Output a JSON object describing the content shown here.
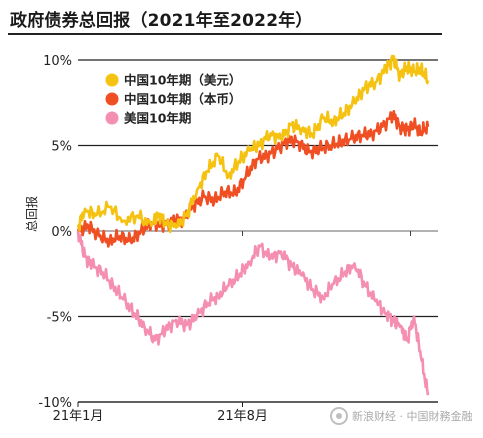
{
  "title": "政府债券总回报（2021年至2022年）",
  "watermark": "新浪财经 · 中国財務金融",
  "chart_data": {
    "type": "line",
    "title": "政府债券总回报（2021年至2022年）",
    "ylabel": "总回报",
    "ylim": [
      -10,
      10
    ],
    "yticks": [
      "10%",
      "5%",
      "0%",
      "-5%",
      "-10%"
    ],
    "ytick_values": [
      10,
      5,
      0,
      -5,
      -10
    ],
    "xticks": [
      "21年1月",
      "21年8月"
    ],
    "grid": "horizontal",
    "legend": "top-left",
    "series": [
      {
        "name": "中国10年期（美元）",
        "color": "#f5c211",
        "x": [
          0,
          0.02,
          0.05,
          0.09,
          0.13,
          0.17,
          0.21,
          0.23,
          0.25,
          0.28,
          0.31,
          0.34,
          0.37,
          0.4,
          0.43,
          0.46,
          0.49,
          0.52,
          0.55,
          0.58,
          0.61,
          0.64,
          0.67,
          0.7,
          0.73,
          0.76,
          0.79,
          0.82,
          0.85,
          0.88,
          0.9,
          0.92,
          0.94,
          0.96,
          0.98,
          1.0
        ],
        "values": [
          0.2,
          1.3,
          0.9,
          1.4,
          0.6,
          0.9,
          0.3,
          1.0,
          0.5,
          0.2,
          0.9,
          2.4,
          3.5,
          4.4,
          3.2,
          4.1,
          4.7,
          5.1,
          5.7,
          5.4,
          6.2,
          6.0,
          5.6,
          6.6,
          6.4,
          6.9,
          7.5,
          8.4,
          8.7,
          9.5,
          10.1,
          9.1,
          9.6,
          9.3,
          9.5,
          8.8
        ]
      },
      {
        "name": "中国10年期（本币）",
        "color": "#f04e23",
        "x": [
          0,
          0.03,
          0.06,
          0.09,
          0.12,
          0.15,
          0.18,
          0.21,
          0.24,
          0.27,
          0.3,
          0.33,
          0.36,
          0.39,
          0.42,
          0.45,
          0.48,
          0.51,
          0.54,
          0.57,
          0.6,
          0.63,
          0.66,
          0.69,
          0.72,
          0.75,
          0.78,
          0.81,
          0.84,
          0.87,
          0.9,
          0.92,
          0.94,
          0.96,
          0.98,
          1.0
        ],
        "values": [
          0.0,
          0.3,
          -0.3,
          -0.6,
          -0.3,
          -0.6,
          0.0,
          0.5,
          0.3,
          0.6,
          0.7,
          1.5,
          2.0,
          1.8,
          2.3,
          2.2,
          3.2,
          4.2,
          4.4,
          4.8,
          5.3,
          5.2,
          4.6,
          4.8,
          5.0,
          5.2,
          5.4,
          5.6,
          5.7,
          6.1,
          6.8,
          6.1,
          5.9,
          6.2,
          5.8,
          6.1
        ]
      },
      {
        "name": "美国10年期",
        "color": "#f48fb1",
        "x": [
          0,
          0.02,
          0.04,
          0.07,
          0.1,
          0.13,
          0.16,
          0.19,
          0.22,
          0.25,
          0.28,
          0.31,
          0.34,
          0.37,
          0.4,
          0.43,
          0.46,
          0.49,
          0.52,
          0.55,
          0.58,
          0.61,
          0.64,
          0.67,
          0.7,
          0.73,
          0.76,
          0.79,
          0.82,
          0.85,
          0.88,
          0.9,
          0.92,
          0.94,
          0.96,
          0.98,
          1.0
        ],
        "values": [
          0.0,
          -1.5,
          -2.0,
          -2.4,
          -3.2,
          -4.0,
          -4.8,
          -5.6,
          -6.4,
          -5.8,
          -5.2,
          -5.5,
          -5.0,
          -4.2,
          -3.8,
          -3.2,
          -2.6,
          -1.8,
          -0.9,
          -1.6,
          -1.2,
          -2.0,
          -2.6,
          -3.4,
          -3.9,
          -3.1,
          -2.5,
          -1.9,
          -3.2,
          -4.1,
          -4.8,
          -5.2,
          -5.6,
          -6.4,
          -5.0,
          -7.4,
          -9.6
        ]
      }
    ]
  }
}
